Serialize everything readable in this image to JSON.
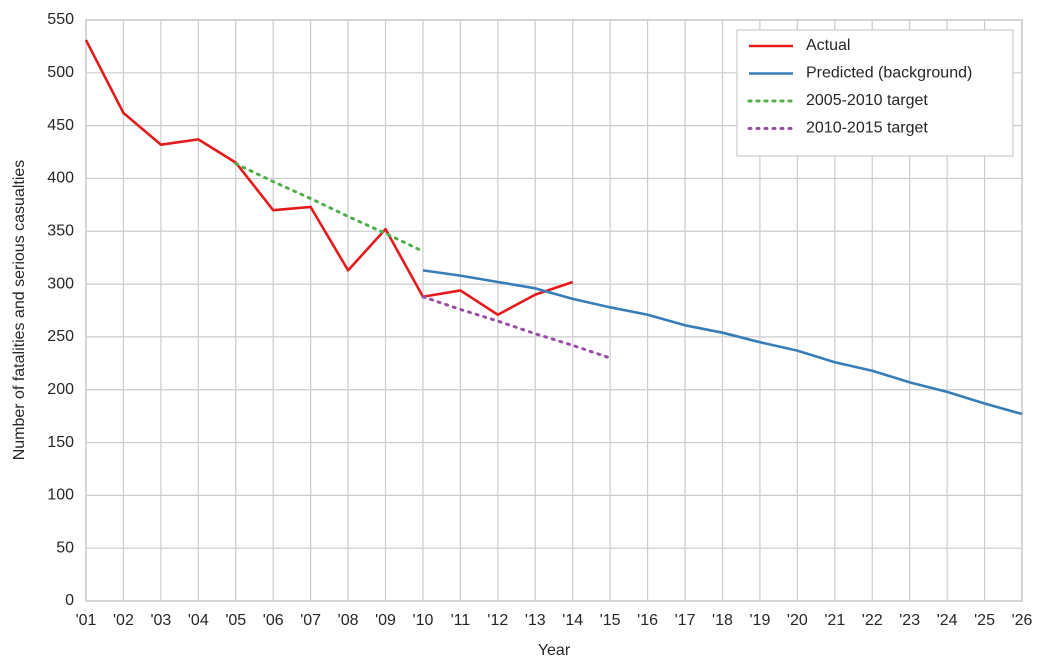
{
  "chart_data": {
    "type": "line",
    "xlabel": "Year",
    "ylabel": "Number of fatalities and serious casualties",
    "categories": [
      "'01",
      "'02",
      "'03",
      "'04",
      "'05",
      "'06",
      "'07",
      "'08",
      "'09",
      "'10",
      "'11",
      "'12",
      "'13",
      "'14",
      "'15",
      "'16",
      "'17",
      "'18",
      "'19",
      "'20",
      "'21",
      "'22",
      "'23",
      "'24",
      "'25",
      "'26"
    ],
    "series": [
      {
        "name": "Actual",
        "color": "#e41a1c",
        "style": "solid",
        "values": [
          531,
          462,
          432,
          437,
          415,
          370,
          373,
          313,
          352,
          288,
          294,
          271,
          290,
          302,
          null,
          null,
          null,
          null,
          null,
          null,
          null,
          null,
          null,
          null,
          null,
          null
        ]
      },
      {
        "name": "Predicted (background)",
        "color": "#377eb8",
        "style": "solid",
        "values": [
          null,
          null,
          null,
          null,
          null,
          null,
          null,
          null,
          null,
          313,
          308,
          302,
          296,
          286,
          278,
          271,
          261,
          254,
          245,
          237,
          226,
          218,
          207,
          198,
          187,
          177
        ]
      },
      {
        "name": "2005-2010 target",
        "color": "#4daf4a",
        "style": "dotted",
        "values": [
          null,
          null,
          null,
          null,
          414,
          397,
          381,
          364,
          348,
          331,
          null,
          null,
          null,
          null,
          null,
          null,
          null,
          null,
          null,
          null,
          null,
          null,
          null,
          null,
          null,
          null
        ]
      },
      {
        "name": "2010-2015 target",
        "color": "#984ea3",
        "style": "dotted",
        "values": [
          null,
          null,
          null,
          null,
          null,
          null,
          null,
          null,
          null,
          288,
          276,
          265,
          253,
          242,
          230,
          null,
          null,
          null,
          null,
          null,
          null,
          null,
          null,
          null,
          null,
          null
        ]
      }
    ],
    "ylim": [
      0,
      550
    ],
    "yticks": [
      0,
      50,
      100,
      150,
      200,
      250,
      300,
      350,
      400,
      450,
      500,
      550
    ],
    "grid": true,
    "legend": "upper right"
  }
}
